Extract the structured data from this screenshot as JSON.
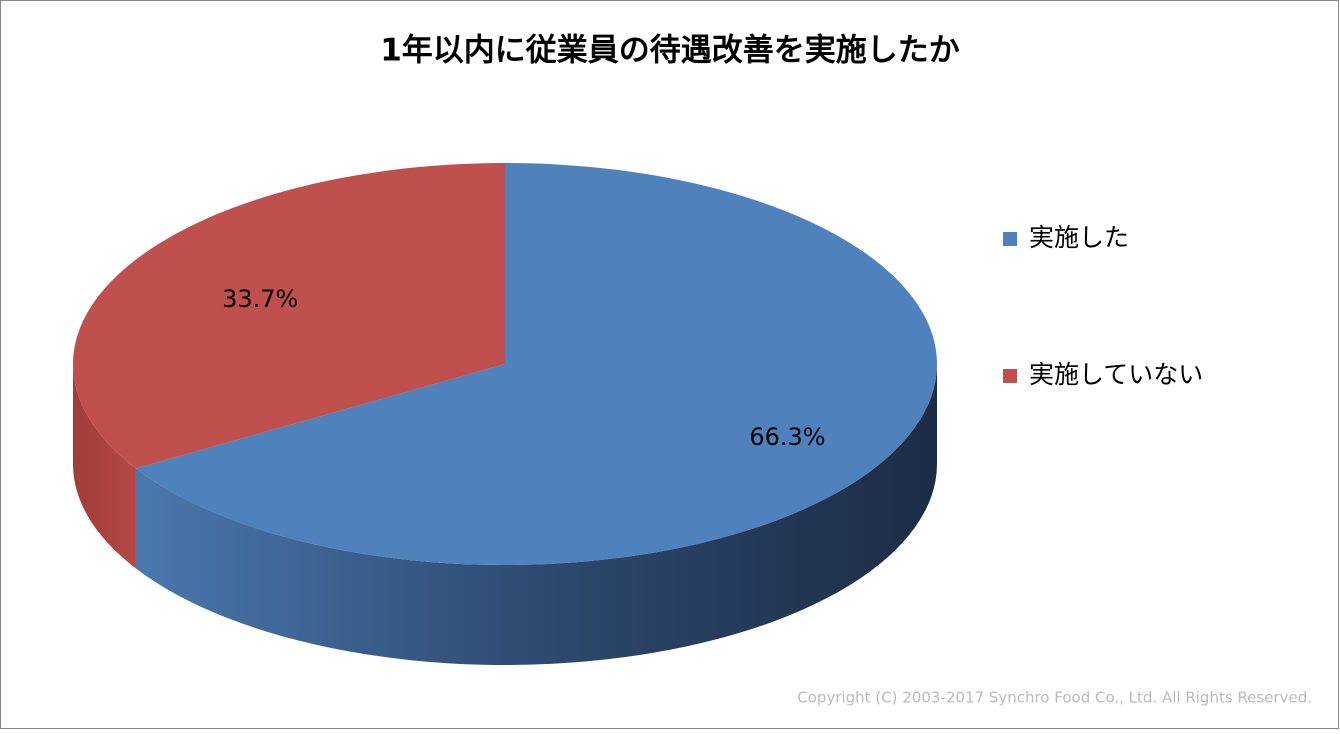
{
  "chart_data": {
    "type": "pie",
    "title": "1年以内に従業員の待遇改善を実施したか",
    "categories": [
      "実施した",
      "実施していない"
    ],
    "values": [
      66.3,
      33.7
    ],
    "value_labels": [
      "66.3%",
      "33.7%"
    ],
    "colors": [
      "#4f81bd",
      "#c0504d"
    ],
    "legend": "right",
    "annotation": "Copyright (C) 2003-2017  Synchro Food Co., Ltd. All Rights Reserved."
  }
}
